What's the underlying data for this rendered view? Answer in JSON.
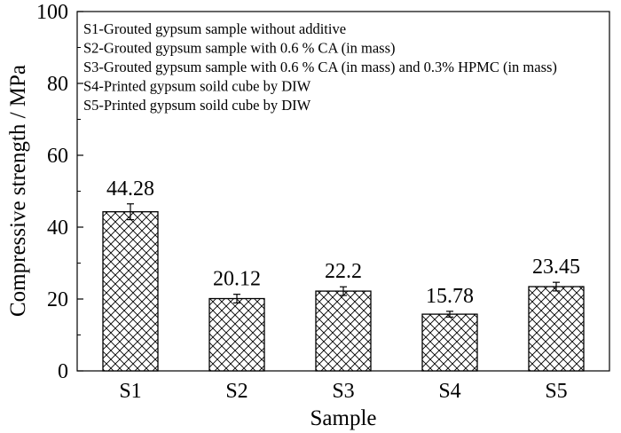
{
  "chart_data": {
    "type": "bar",
    "categories": [
      "S1",
      "S2",
      "S3",
      "S4",
      "S5"
    ],
    "values": [
      44.28,
      20.12,
      22.2,
      15.78,
      23.45
    ],
    "error_bars": [
      2.2,
      1.2,
      1.2,
      0.8,
      1.2
    ],
    "data_labels": [
      "44.28",
      "20.12",
      "22.2",
      "15.78",
      "23.45"
    ],
    "title": "",
    "xlabel": "Sample",
    "ylabel": "Compressive strength / MPa",
    "ylim": [
      0,
      100
    ],
    "yticks": [
      0,
      20,
      40,
      60,
      80,
      100
    ],
    "grid": false,
    "bar_fill": "crosshatch",
    "legend_placement": "top-left",
    "annotations": [
      "S1-Grouted gypsum sample without additive",
      "S2-Grouted gypsum sample with 0.6 % CA (in mass)",
      "S3-Grouted gypsum sample with 0.6 % CA (in mass) and 0.3% HPMC (in mass)",
      "S4-Printed gypsum soild cube by DIW",
      "S5-Printed gypsum soild cube by DIW"
    ],
    "colors": {
      "bar_edge": "#000000",
      "hatch": "#000000",
      "background": "#ffffff"
    }
  }
}
